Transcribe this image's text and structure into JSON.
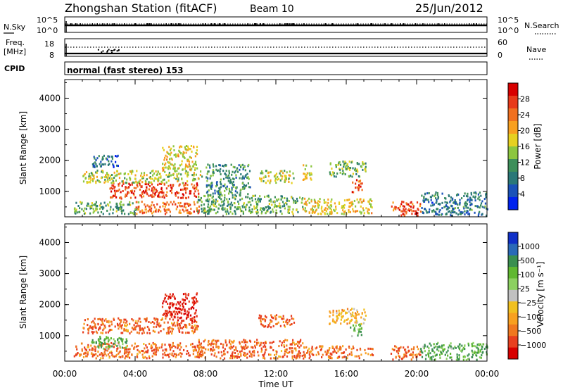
{
  "header": {
    "station": "Zhongshan Station (fitACF)",
    "beam": "Beam 10",
    "date": "25/Jun/2012"
  },
  "top_panels": {
    "nsky_label": "N.Sky",
    "nsearch_label": "N.Search",
    "freq_label_1": "Freq.",
    "freq_label_2": "[MHz]",
    "nave_label": "Nave",
    "cpid_label": "CPID",
    "cpid_text": "normal (fast stereo) 153",
    "left_ticks_noise": [
      "10^5",
      "10^0"
    ],
    "right_ticks_noise": [
      "10^5",
      "10^0"
    ],
    "left_ticks_freq": [
      "18",
      "8"
    ],
    "right_ticks_nave": [
      "60",
      "0"
    ]
  },
  "chart_data": [
    {
      "type": "heatmap",
      "title": "",
      "quantity": "Power",
      "xlabel": "",
      "ylabel": "Slant Range [km]",
      "x_ticks": [
        "00:00",
        "04:00",
        "08:00",
        "12:00",
        "16:00",
        "20:00",
        "00:00"
      ],
      "y_ticks": [
        1000,
        2000,
        3000,
        4000
      ],
      "xlim_hours": [
        0,
        24
      ],
      "ylim_km": [
        180,
        4600
      ],
      "colorbar_label": "Power [dB]",
      "colorbar_ticks": [
        "4",
        "8",
        "12",
        "16",
        "20",
        "24",
        "28"
      ],
      "colorbar_range": [
        0,
        32
      ],
      "colors": [
        "#0022ee",
        "#1a52b8",
        "#2a7878",
        "#3d8f5a",
        "#8cc63f",
        "#e6d020",
        "#f8a020",
        "#f07020",
        "#e83a1a",
        "#d80000"
      ],
      "patches": [
        {
          "t0": 0.5,
          "t1": 4.2,
          "r0": 300,
          "r1": 700,
          "v": 12
        },
        {
          "t0": 2.5,
          "t1": 7.6,
          "r0": 800,
          "r1": 1300,
          "v": 27
        },
        {
          "t0": 1.0,
          "t1": 7.8,
          "r0": 1300,
          "r1": 1700,
          "v": 16
        },
        {
          "t0": 4.0,
          "t1": 7.6,
          "r0": 300,
          "r1": 700,
          "v": 24
        },
        {
          "t0": 5.5,
          "t1": 7.5,
          "r0": 1700,
          "r1": 2500,
          "v": 18
        },
        {
          "t0": 7.5,
          "t1": 13.5,
          "r0": 300,
          "r1": 900,
          "v": 12
        },
        {
          "t0": 8.0,
          "t1": 10.5,
          "r0": 900,
          "r1": 1900,
          "v": 10
        },
        {
          "t0": 11.0,
          "t1": 13.0,
          "r0": 1300,
          "r1": 1700,
          "v": 16
        },
        {
          "t0": 13.5,
          "t1": 14.0,
          "r0": 1400,
          "r1": 1900,
          "v": 18
        },
        {
          "t0": 15.0,
          "t1": 17.1,
          "r0": 1500,
          "r1": 2000,
          "v": 14
        },
        {
          "t0": 16.3,
          "t1": 16.9,
          "r0": 1000,
          "r1": 1400,
          "v": 26
        },
        {
          "t0": 13.5,
          "t1": 17.5,
          "r0": 300,
          "r1": 800,
          "v": 18
        },
        {
          "t0": 18.5,
          "t1": 20.2,
          "r0": 250,
          "r1": 700,
          "v": 26
        },
        {
          "t0": 20.2,
          "t1": 24.0,
          "r0": 250,
          "r1": 1000,
          "v": 8
        },
        {
          "t0": 1.5,
          "t1": 3.0,
          "r0": 1800,
          "r1": 2200,
          "v": 6
        }
      ]
    },
    {
      "type": "heatmap",
      "title": "",
      "quantity": "Velocity",
      "xlabel": "Time UT",
      "ylabel": "Slant Range [km]",
      "x_ticks": [
        "00:00",
        "04:00",
        "08:00",
        "12:00",
        "16:00",
        "20:00",
        "00:00"
      ],
      "y_ticks": [
        1000,
        2000,
        3000,
        4000
      ],
      "xlim_hours": [
        0,
        24
      ],
      "ylim_km": [
        180,
        4600
      ],
      "colorbar_label": "Velocity [m s⁻¹]",
      "colorbar_ticks": [
        "1000",
        "500",
        "100",
        "25",
        "−25",
        "−100",
        "−500",
        "−1000"
      ],
      "colors": [
        "#1030c8",
        "#2a6ab8",
        "#3a8f50",
        "#60b830",
        "#8cd060",
        "#c0c0c0",
        "#f0c020",
        "#f8a020",
        "#f07820",
        "#e84020",
        "#d80000"
      ],
      "patches": [
        {
          "t0": 0.5,
          "t1": 7.8,
          "r0": 300,
          "r1": 800,
          "v": -100
        },
        {
          "t0": 1.0,
          "t1": 7.6,
          "r0": 1100,
          "r1": 1600,
          "v": -100
        },
        {
          "t0": 1.5,
          "t1": 3.5,
          "r0": 600,
          "r1": 1000,
          "v": 100
        },
        {
          "t0": 5.5,
          "t1": 7.5,
          "r0": 1500,
          "r1": 2400,
          "v": -500
        },
        {
          "t0": 7.5,
          "t1": 13.5,
          "r0": 300,
          "r1": 900,
          "v": -100
        },
        {
          "t0": 11.0,
          "t1": 13.0,
          "r0": 1300,
          "r1": 1700,
          "v": -100
        },
        {
          "t0": 13.5,
          "t1": 17.5,
          "r0": 300,
          "r1": 700,
          "v": -100
        },
        {
          "t0": 15.0,
          "t1": 17.1,
          "r0": 1400,
          "r1": 1900,
          "v": -25
        },
        {
          "t0": 16.2,
          "t1": 16.9,
          "r0": 1000,
          "r1": 1400,
          "v": 100
        },
        {
          "t0": 18.5,
          "t1": 20.2,
          "r0": 250,
          "r1": 700,
          "v": -100
        },
        {
          "t0": 20.2,
          "t1": 24.0,
          "r0": 250,
          "r1": 800,
          "v": 100
        }
      ]
    }
  ]
}
